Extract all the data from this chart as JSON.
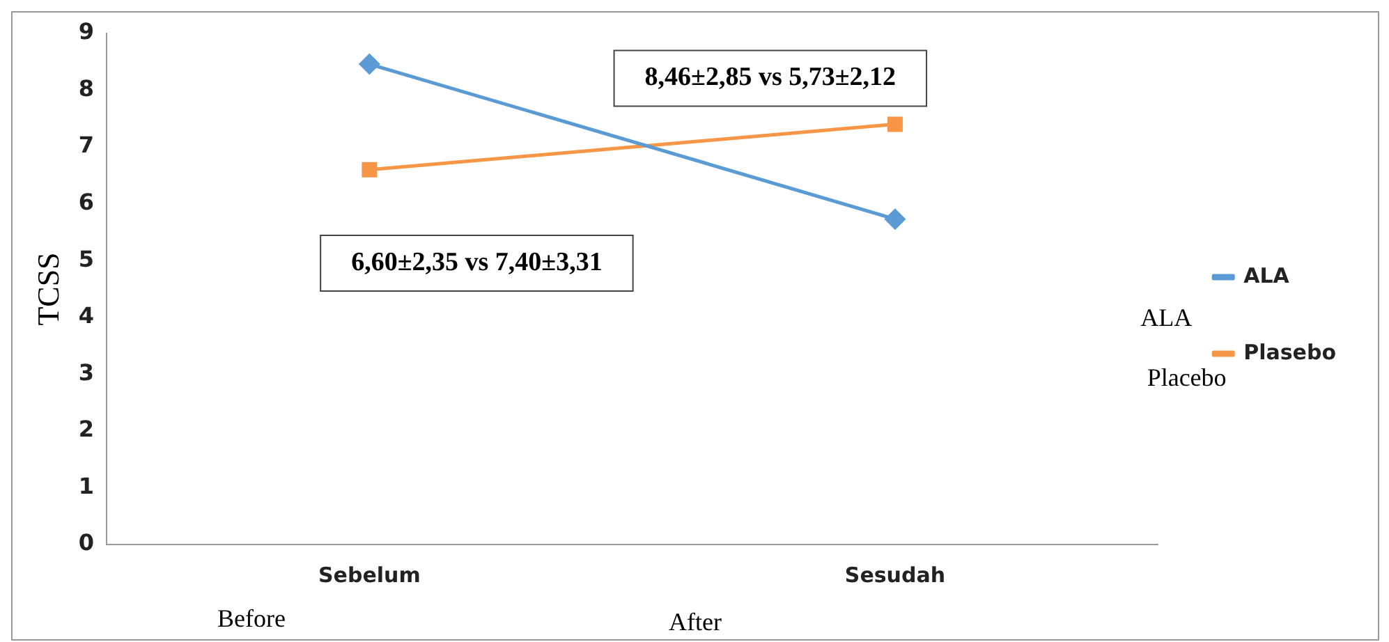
{
  "chart_data": {
    "type": "line",
    "ylabel": "TCSS",
    "categories": [
      "Sebelum",
      "Sesudah"
    ],
    "series": [
      {
        "name": "ALA",
        "color": "#5b9bd5",
        "values": [
          8.46,
          5.73
        ],
        "marker": "diamond"
      },
      {
        "name": "Plasebo",
        "color": "#f79646",
        "values": [
          6.6,
          7.4
        ],
        "marker": "square"
      }
    ],
    "ylim": [
      0,
      9
    ],
    "yticks": [
      0,
      1,
      2,
      3,
      4,
      5,
      6,
      7,
      8,
      9
    ],
    "grid": false,
    "legend": "right",
    "line_style": "solid",
    "annotations": [
      "8,46±2,85 vs 5,73±2,12",
      "6,60±2,35 vs 7,40±3,31",
      "Before",
      "After",
      "ALA",
      "Placebo"
    ]
  }
}
